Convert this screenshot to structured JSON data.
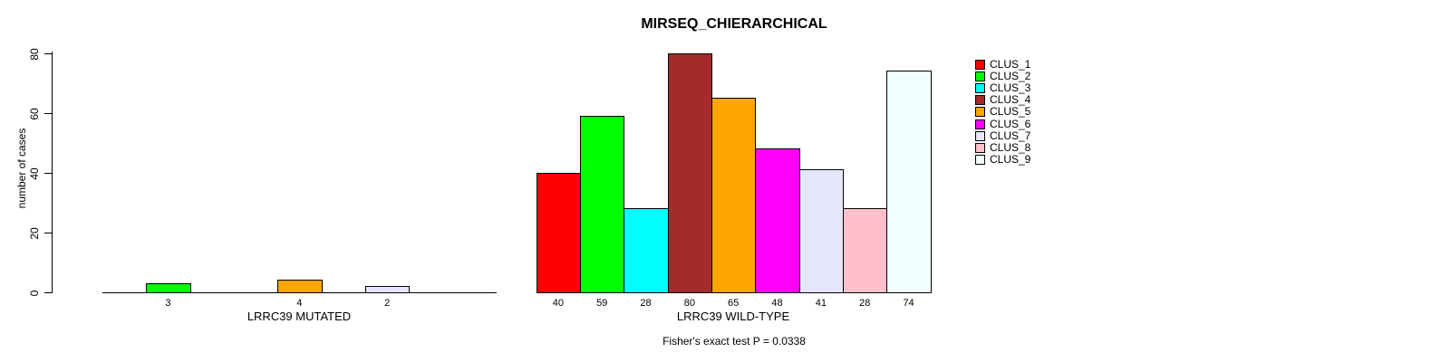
{
  "chart_data": {
    "type": "bar",
    "title": "MIRSEQ_CHIERARCHICAL",
    "ylabel": "number of cases",
    "xlabel": "",
    "ylim": [
      0,
      80
    ],
    "yticks": [
      0,
      20,
      40,
      60,
      80
    ],
    "grid": false,
    "legend_position": "right",
    "legend": [
      "CLUS_1",
      "CLUS_2",
      "CLUS_3",
      "CLUS_4",
      "CLUS_5",
      "CLUS_6",
      "CLUS_7",
      "CLUS_8",
      "CLUS_9"
    ],
    "colors": [
      "#ff0000",
      "#00ff00",
      "#00ffff",
      "#a52a2a",
      "#ffa500",
      "#ff00ff",
      "#e6e6fa",
      "#ffc0cb",
      "#f0ffff"
    ],
    "groups": [
      {
        "label": "LRRC39 MUTATED",
        "categories": [
          "CLUS_1",
          "CLUS_2",
          "CLUS_3",
          "CLUS_4",
          "CLUS_5",
          "CLUS_6",
          "CLUS_7",
          "CLUS_8",
          "CLUS_9"
        ],
        "values": [
          0,
          3,
          0,
          0,
          4,
          0,
          2,
          0,
          0
        ]
      },
      {
        "label": "LRRC39 WILD-TYPE",
        "categories": [
          "CLUS_1",
          "CLUS_2",
          "CLUS_3",
          "CLUS_4",
          "CLUS_5",
          "CLUS_6",
          "CLUS_7",
          "CLUS_8",
          "CLUS_9"
        ],
        "values": [
          40,
          59,
          28,
          80,
          65,
          48,
          41,
          28,
          74
        ]
      }
    ],
    "annotation": "Fisher's exact test P = 0.0338"
  }
}
